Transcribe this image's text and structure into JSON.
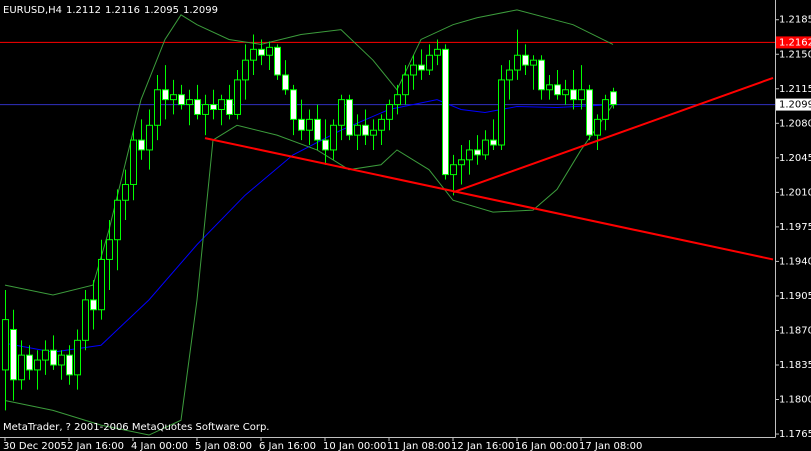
{
  "chart_data": {
    "type": "candlestick",
    "title": "EURUSD,H4",
    "footer": "MetaTrader, ? 2001-2006 MetaQuotes Software Corp.",
    "categories": [
      "30 Dec 2005",
      null,
      null,
      null,
      null,
      null,
      null,
      null,
      "2 Jan 16:00",
      null,
      null,
      null,
      null,
      null,
      null,
      null,
      "4 Jan 00:00",
      null,
      null,
      null,
      null,
      null,
      null,
      null,
      "5 Jan 08:00",
      null,
      null,
      null,
      null,
      null,
      null,
      null,
      "6 Jan 16:00",
      null,
      null,
      null,
      null,
      null,
      null,
      null,
      "10 Jan 00:00",
      null,
      null,
      null,
      null,
      null,
      null,
      null,
      "11 Jan 08:00",
      null,
      null,
      null,
      null,
      null,
      null,
      null,
      "12 Jan 16:00",
      null,
      null,
      null,
      null,
      null,
      null,
      null,
      "16 Jan 00:00",
      null,
      null,
      null,
      null,
      null,
      null,
      null,
      "17 Jan 08:00",
      null,
      null,
      null,
      null
    ],
    "open": [
      1.183,
      1.1871,
      1.182,
      1.1845,
      1.183,
      1.184,
      1.185,
      1.1835,
      1.1845,
      1.1825,
      1.186,
      1.1901,
      1.1891,
      1.1942,
      1.1962,
      1.2002,
      1.2018,
      1.2063,
      1.2053,
      1.2078,
      1.2114,
      1.2104,
      1.2109,
      1.2099,
      1.2104,
      1.2089,
      1.2099,
      1.2094,
      1.2104,
      1.2089,
      1.2124,
      1.2144,
      1.2155,
      1.2149,
      1.2157,
      1.2129,
      1.2114,
      1.2084,
      1.2073,
      1.2084,
      1.2063,
      1.2053,
      1.2078,
      1.2104,
      1.2068,
      1.2078,
      1.2068,
      1.2073,
      1.2084,
      1.2099,
      1.2109,
      1.2129,
      1.2139,
      1.2134,
      1.2149,
      1.2155,
      1.2028,
      1.2038,
      1.2043,
      1.2053,
      1.2048,
      1.2063,
      1.2058,
      1.2124,
      1.2134,
      1.2149,
      1.2139,
      1.2144,
      1.2114,
      1.2119,
      1.2109,
      1.2114,
      1.2104,
      1.2114,
      1.2068,
      1.2084,
      1.2112
    ],
    "high": [
      1.1911,
      1.1891,
      1.186,
      1.1855,
      1.185,
      1.186,
      1.1865,
      1.185,
      1.1855,
      1.1871,
      1.1911,
      1.1921,
      1.1962,
      1.1982,
      1.2013,
      1.2033,
      1.2073,
      1.2084,
      1.2094,
      1.2129,
      1.2139,
      1.2124,
      1.2119,
      1.2114,
      1.2119,
      1.2109,
      1.2114,
      1.2109,
      1.2119,
      1.2134,
      1.216,
      1.217,
      1.2165,
      1.2163,
      1.216,
      1.2144,
      1.2119,
      1.2104,
      1.2094,
      1.2099,
      1.2084,
      1.2084,
      1.2109,
      1.2109,
      1.2089,
      1.2094,
      1.2084,
      1.2089,
      1.2104,
      1.2119,
      1.2139,
      1.2149,
      1.2155,
      1.216,
      1.2165,
      1.216,
      1.2048,
      1.2058,
      1.2063,
      1.2068,
      1.2073,
      1.2084,
      1.2139,
      1.2144,
      1.2175,
      1.216,
      1.2149,
      1.2149,
      1.2129,
      1.2134,
      1.2124,
      1.2134,
      1.2139,
      1.2119,
      1.2089,
      1.2109,
      1.2116
    ],
    "low": [
      1.1789,
      1.1799,
      1.181,
      1.182,
      1.181,
      1.1825,
      1.183,
      1.182,
      1.1815,
      1.181,
      1.185,
      1.1871,
      1.1881,
      1.1911,
      1.1931,
      1.1982,
      1.2002,
      1.2043,
      1.2033,
      1.2063,
      1.2084,
      1.2089,
      1.2094,
      1.2078,
      1.2084,
      1.2068,
      1.2084,
      1.2078,
      1.2084,
      1.2084,
      1.2104,
      1.2129,
      1.2139,
      1.2134,
      1.2124,
      1.2109,
      1.2068,
      1.2063,
      1.2058,
      1.2053,
      1.2038,
      1.2043,
      1.2063,
      1.2063,
      1.2053,
      1.2058,
      1.2053,
      1.2058,
      1.2073,
      1.2089,
      1.2099,
      1.2114,
      1.2124,
      1.2129,
      1.2139,
      1.2023,
      1.2007,
      1.2018,
      1.2028,
      1.2038,
      1.2043,
      1.2053,
      1.2053,
      1.2104,
      1.2124,
      1.2129,
      1.2114,
      1.2104,
      1.2104,
      1.2104,
      1.2099,
      1.2094,
      1.2094,
      1.2063,
      1.2053,
      1.2073,
      1.2095
    ],
    "close": [
      1.1881,
      1.182,
      1.1845,
      1.183,
      1.184,
      1.185,
      1.1835,
      1.1845,
      1.1825,
      1.186,
      1.1901,
      1.1891,
      1.1942,
      1.1962,
      1.2002,
      1.2018,
      1.2063,
      1.2053,
      1.2078,
      1.2114,
      1.2104,
      1.2109,
      1.2099,
      1.2104,
      1.2089,
      1.2099,
      1.2094,
      1.2104,
      1.2089,
      1.2124,
      1.2144,
      1.2155,
      1.2149,
      1.2157,
      1.2129,
      1.2114,
      1.2084,
      1.2073,
      1.2084,
      1.2063,
      1.2053,
      1.2078,
      1.2104,
      1.2068,
      1.2078,
      1.2068,
      1.2073,
      1.2084,
      1.2099,
      1.2109,
      1.2129,
      1.2139,
      1.2134,
      1.2149,
      1.2155,
      1.2028,
      1.2038,
      1.2043,
      1.2053,
      1.2048,
      1.2063,
      1.2058,
      1.2124,
      1.2134,
      1.2149,
      1.2139,
      1.2144,
      1.2114,
      1.2119,
      1.2109,
      1.2114,
      1.2104,
      1.2114,
      1.2068,
      1.2084,
      1.2104,
      1.2099
    ],
    "up_color": "#00ff00",
    "bull_fill": "#000000",
    "bear_fill": "#ffffff",
    "indicators": [
      {
        "color": "#0000ff",
        "x": [
          0,
          6,
          12,
          18,
          24,
          30,
          36,
          42,
          48,
          54,
          57,
          60,
          64,
          69,
          76
        ],
        "values": [
          1.1857,
          1.1848,
          1.1855,
          1.1901,
          1.1957,
          1.2007,
          1.2048,
          1.2073,
          1.2094,
          1.2104,
          1.2094,
          1.2091,
          1.2097,
          1.2096,
          1.2099
        ]
      },
      {
        "color": "#3c9c3c",
        "x": [
          0,
          6,
          11,
          13,
          17,
          20,
          22,
          24,
          28,
          32,
          37,
          42,
          46,
          49,
          52,
          56,
          59,
          64,
          71,
          76
        ],
        "values": [
          1.1916,
          1.1906,
          1.1916,
          1.1972,
          1.2104,
          1.2165,
          1.219,
          1.218,
          1.2165,
          1.216,
          1.217,
          1.2175,
          1.2144,
          1.2114,
          1.2165,
          1.218,
          1.2187,
          1.2195,
          1.218,
          1.216
        ]
      },
      {
        "color": "#3c9c3c",
        "x": [
          0,
          6,
          12,
          18,
          22,
          24,
          26,
          29,
          34,
          39,
          43,
          47,
          49,
          53,
          56,
          61,
          66,
          69,
          72,
          76
        ],
        "values": [
          1.1799,
          1.1789,
          1.1774,
          1.1764,
          1.1779,
          1.1901,
          1.2063,
          1.2078,
          1.2068,
          1.2053,
          1.2033,
          1.2038,
          1.2053,
          1.2033,
          1.2002,
          1.199,
          1.1992,
          1.2013,
          1.2053,
          1.2099
        ]
      }
    ],
    "trendlines": [
      {
        "color": "#ff0000",
        "points": [
          [
            25,
            1.2065
          ],
          [
            96,
            1.1942
          ]
        ]
      },
      {
        "color": "#ff0000",
        "points": [
          [
            56,
            1.201
          ],
          [
            96,
            1.2126
          ]
        ]
      }
    ],
    "hlines": [
      {
        "value": 1.2162,
        "color": "#ff0000"
      }
    ],
    "bid_color": "#3030c0",
    "ylim": [
      1.1762,
      1.2205
    ],
    "yticks": [
      1.2185,
      {
        "value": 1.215,
        "label": "1.2150"
      },
      1.2115,
      {
        "value": 1.208,
        "label": "1.2080"
      },
      1.2045,
      {
        "value": 1.201,
        "label": "1.2010"
      },
      1.1975,
      {
        "value": 1.194,
        "label": "1.1940"
      },
      1.1905,
      {
        "value": 1.187,
        "label": "1.1870"
      },
      1.1835,
      {
        "value": 1.18,
        "label": "1.1800"
      },
      1.1765
    ]
  }
}
